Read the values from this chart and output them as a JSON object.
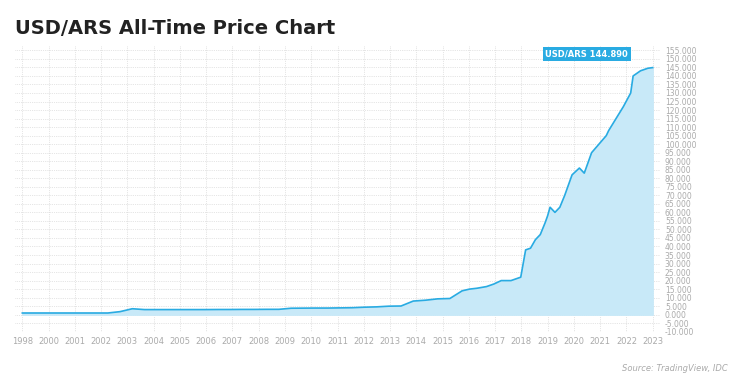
{
  "title": "USD/ARS All-Time Price Chart",
  "title_fontsize": 14,
  "title_fontweight": "bold",
  "background_color": "#ffffff",
  "plot_bg_color": "#ffffff",
  "line_color": "#29ABE2",
  "fill_color": "#C8E9F8",
  "annotation_box_color": "#29ABE2",
  "annotation_text": "USD/ARS 144.890",
  "source_text": "Source: TradingView, IDC",
  "grid_color": "#cccccc",
  "ylim": [
    -10000,
    158000
  ],
  "ytick_step": 5000,
  "xtick_labels": [
    "1998",
    "2000",
    "2001",
    "2002",
    "2003",
    "2004",
    "2005",
    "2006",
    "2007",
    "2008",
    "2009",
    "2010",
    "2011",
    "2012",
    "2013",
    "2014",
    "2015",
    "2016",
    "2017",
    "2018",
    "2019",
    "2020",
    "2021",
    "2022",
    "2023"
  ],
  "data_years": [
    1998.0,
    1998.5,
    1999.0,
    1999.5,
    2000.0,
    2000.5,
    2001.0,
    2001.5,
    2002.0,
    2002.5,
    2003.0,
    2003.5,
    2004.0,
    2004.5,
    2005.0,
    2005.5,
    2006.0,
    2006.5,
    2007.0,
    2007.5,
    2008.0,
    2008.5,
    2009.0,
    2009.5,
    2010.0,
    2010.5,
    2011.0,
    2011.5,
    2012.0,
    2012.5,
    2013.0,
    2013.5,
    2014.0,
    2014.5,
    2015.0,
    2015.5,
    2016.0,
    2016.3,
    2016.6,
    2017.0,
    2017.3,
    2017.6,
    2017.9,
    2018.0,
    2018.2,
    2018.4,
    2018.6,
    2018.8,
    2019.0,
    2019.2,
    2019.4,
    2019.5,
    2019.6,
    2019.8,
    2020.0,
    2020.2,
    2020.5,
    2020.8,
    2021.0,
    2021.3,
    2021.6,
    2021.9,
    2022.0,
    2022.3,
    2022.6,
    2022.9,
    2023.0,
    2023.3,
    2023.6,
    2023.8
  ],
  "data_values": [
    1000,
    1000,
    1000,
    1000,
    1000,
    1000,
    1000,
    1000,
    1800,
    3500,
    3000,
    3000,
    3000,
    3000,
    3000,
    3000,
    3050,
    3050,
    3100,
    3100,
    3150,
    3150,
    3800,
    3850,
    3900,
    3900,
    4000,
    4100,
    4400,
    4600,
    5000,
    5100,
    8000,
    8500,
    9300,
    9500,
    14000,
    15000,
    15500,
    16500,
    18000,
    20000,
    20000,
    20000,
    21000,
    22000,
    38000,
    39000,
    44000,
    47000,
    54000,
    58000,
    63000,
    60000,
    63000,
    70000,
    82000,
    86000,
    83000,
    95000,
    100000,
    105000,
    108000,
    115000,
    122000,
    130000,
    140000,
    143000,
    144500,
    144890
  ]
}
